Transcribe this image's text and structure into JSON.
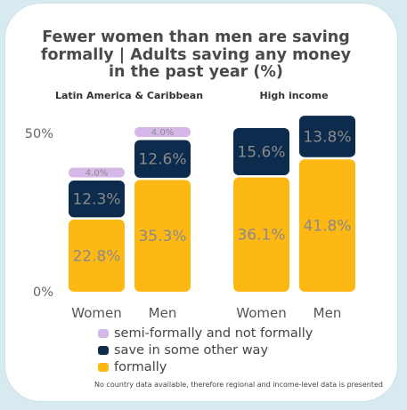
{
  "chart_data": {
    "type": "bar",
    "title_lines": [
      "Fewer women than men are saving",
      "formally | Adults saving any money",
      "in the past year (%)"
    ],
    "panels": [
      {
        "title": "Latin America & Caribbean",
        "categories": [
          "Women",
          "Men"
        ]
      },
      {
        "title": "High income",
        "categories": [
          "Women",
          "Men"
        ]
      }
    ],
    "series": [
      {
        "name": "formally",
        "color": "#fdb813",
        "values": [
          22.8,
          35.3,
          36.1,
          41.8
        ],
        "labels": [
          "22.8%",
          "35.3%",
          "36.1%",
          "41.8%"
        ]
      },
      {
        "name": "save in some other way",
        "color": "#0d2b4c",
        "values": [
          12.3,
          12.6,
          15.6,
          13.8
        ],
        "labels": [
          "12.3%",
          "12.6%",
          "15.6%",
          "13.8%"
        ]
      },
      {
        "name": "semi-formally and not formally",
        "color": "#d5b8e8",
        "values": [
          4.0,
          4.0,
          null,
          null
        ],
        "labels": [
          "4.0%",
          "4.0%",
          "",
          ""
        ]
      }
    ],
    "legend_order": [
      2,
      1,
      0
    ],
    "yticks": [
      {
        "value": 0,
        "label": "0%"
      },
      {
        "value": 50,
        "label": "50%"
      }
    ],
    "ylim": [
      0,
      50
    ],
    "legend_position": "bottom",
    "grid": false,
    "note": "No country data available, therefore regional and income-level data is presented"
  }
}
